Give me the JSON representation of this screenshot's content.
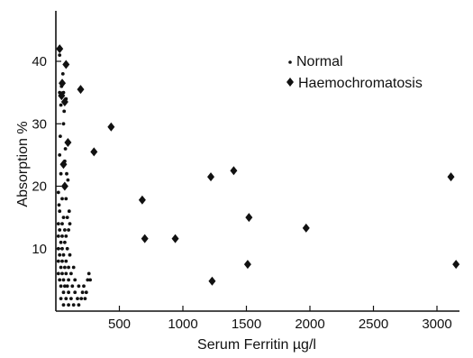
{
  "chart_data": {
    "type": "scatter",
    "title": "",
    "xlabel": "Serum Ferritin µg/l",
    "ylabel": "Absorption %",
    "xlim": [
      0,
      3150
    ],
    "ylim": [
      0,
      46
    ],
    "xticks": [
      500,
      1000,
      1500,
      2000,
      2500,
      3000
    ],
    "yticks": [
      10,
      20,
      30,
      40
    ],
    "grid": false,
    "legend_position": "top-right",
    "series": [
      {
        "name": "Normal",
        "marker": "dot",
        "points": [
          [
            20,
            42
          ],
          [
            30,
            41
          ],
          [
            60,
            35
          ],
          [
            30,
            35
          ],
          [
            80,
            34
          ],
          [
            40,
            33
          ],
          [
            60,
            30
          ],
          [
            30,
            25
          ],
          [
            70,
            24
          ],
          [
            40,
            22
          ],
          [
            60,
            20
          ],
          [
            20,
            19
          ],
          [
            50,
            18
          ],
          [
            80,
            18
          ],
          [
            30,
            16
          ],
          [
            60,
            15
          ],
          [
            90,
            15
          ],
          [
            20,
            14
          ],
          [
            50,
            14
          ],
          [
            110,
            14
          ],
          [
            30,
            13
          ],
          [
            70,
            13
          ],
          [
            100,
            13
          ],
          [
            20,
            12
          ],
          [
            50,
            12
          ],
          [
            80,
            12
          ],
          [
            40,
            11
          ],
          [
            70,
            11
          ],
          [
            20,
            10
          ],
          [
            50,
            10
          ],
          [
            90,
            10
          ],
          [
            30,
            9
          ],
          [
            60,
            9
          ],
          [
            110,
            9
          ],
          [
            20,
            8
          ],
          [
            50,
            8
          ],
          [
            80,
            8
          ],
          [
            40,
            7
          ],
          [
            70,
            7
          ],
          [
            100,
            7
          ],
          [
            140,
            7
          ],
          [
            20,
            6
          ],
          [
            50,
            6
          ],
          [
            80,
            6
          ],
          [
            120,
            6
          ],
          [
            30,
            5
          ],
          [
            60,
            5
          ],
          [
            100,
            5
          ],
          [
            150,
            5
          ],
          [
            40,
            4
          ],
          [
            70,
            4
          ],
          [
            90,
            4
          ],
          [
            130,
            4
          ],
          [
            180,
            4
          ],
          [
            220,
            4
          ],
          [
            60,
            3
          ],
          [
            100,
            3
          ],
          [
            150,
            3
          ],
          [
            210,
            3
          ],
          [
            40,
            2
          ],
          [
            80,
            2
          ],
          [
            120,
            2
          ],
          [
            170,
            2
          ],
          [
            230,
            2
          ],
          [
            60,
            1
          ],
          [
            100,
            1
          ],
          [
            140,
            1
          ],
          [
            180,
            1
          ],
          [
            200,
            2
          ],
          [
            240,
            3
          ],
          [
            250,
            5
          ],
          [
            260,
            6
          ],
          [
            270,
            5
          ],
          [
            55,
            38
          ],
          [
            45,
            36
          ],
          [
            65,
            32
          ],
          [
            35,
            28
          ],
          [
            75,
            26
          ],
          [
            85,
            22
          ],
          [
            95,
            21
          ],
          [
            25,
            17
          ],
          [
            105,
            16
          ]
        ]
      },
      {
        "name": "Haemochromatosis",
        "marker": "diamond",
        "points": [
          [
            30,
            42
          ],
          [
            80,
            39.5
          ],
          [
            50,
            36.5
          ],
          [
            195,
            35.5
          ],
          [
            45,
            34.5
          ],
          [
            70,
            33.5
          ],
          [
            95,
            27
          ],
          [
            435,
            29.5
          ],
          [
            300,
            25.5
          ],
          [
            60,
            23.5
          ],
          [
            70,
            20
          ],
          [
            680,
            17.8
          ],
          [
            1220,
            21.5
          ],
          [
            1400,
            22.5
          ],
          [
            1520,
            15
          ],
          [
            3110,
            21.5
          ],
          [
            1970,
            13.3
          ],
          [
            700,
            11.6
          ],
          [
            940,
            11.6
          ],
          [
            1510,
            7.5
          ],
          [
            3150,
            7.5
          ],
          [
            1230,
            4.8
          ]
        ]
      }
    ]
  }
}
